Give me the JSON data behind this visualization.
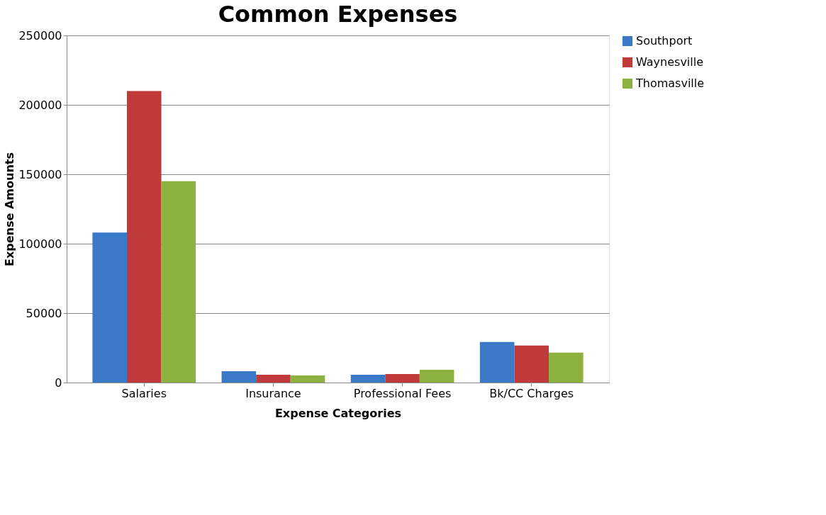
{
  "chart_data": {
    "type": "bar",
    "title": "Common Expenses",
    "xlabel": "Expense Categories",
    "ylabel": "Expense Amounts",
    "categories": [
      "Salaries",
      "Insurance",
      "Professional Fees",
      "Bk/CC Charges"
    ],
    "series": [
      {
        "name": "Southport",
        "color": "#3a78c8",
        "values": [
          108000,
          8200,
          5600,
          29200
        ]
      },
      {
        "name": "Waynesville",
        "color": "#c0393b",
        "values": [
          210000,
          5600,
          6100,
          26700
        ]
      },
      {
        "name": "Thomasville",
        "color": "#8db240",
        "values": [
          145000,
          5100,
          9200,
          21500
        ]
      }
    ],
    "ylim": [
      0,
      250000
    ],
    "yticks": [
      0,
      50000,
      100000,
      150000,
      200000,
      250000
    ],
    "grid": "y",
    "legend": "right"
  }
}
